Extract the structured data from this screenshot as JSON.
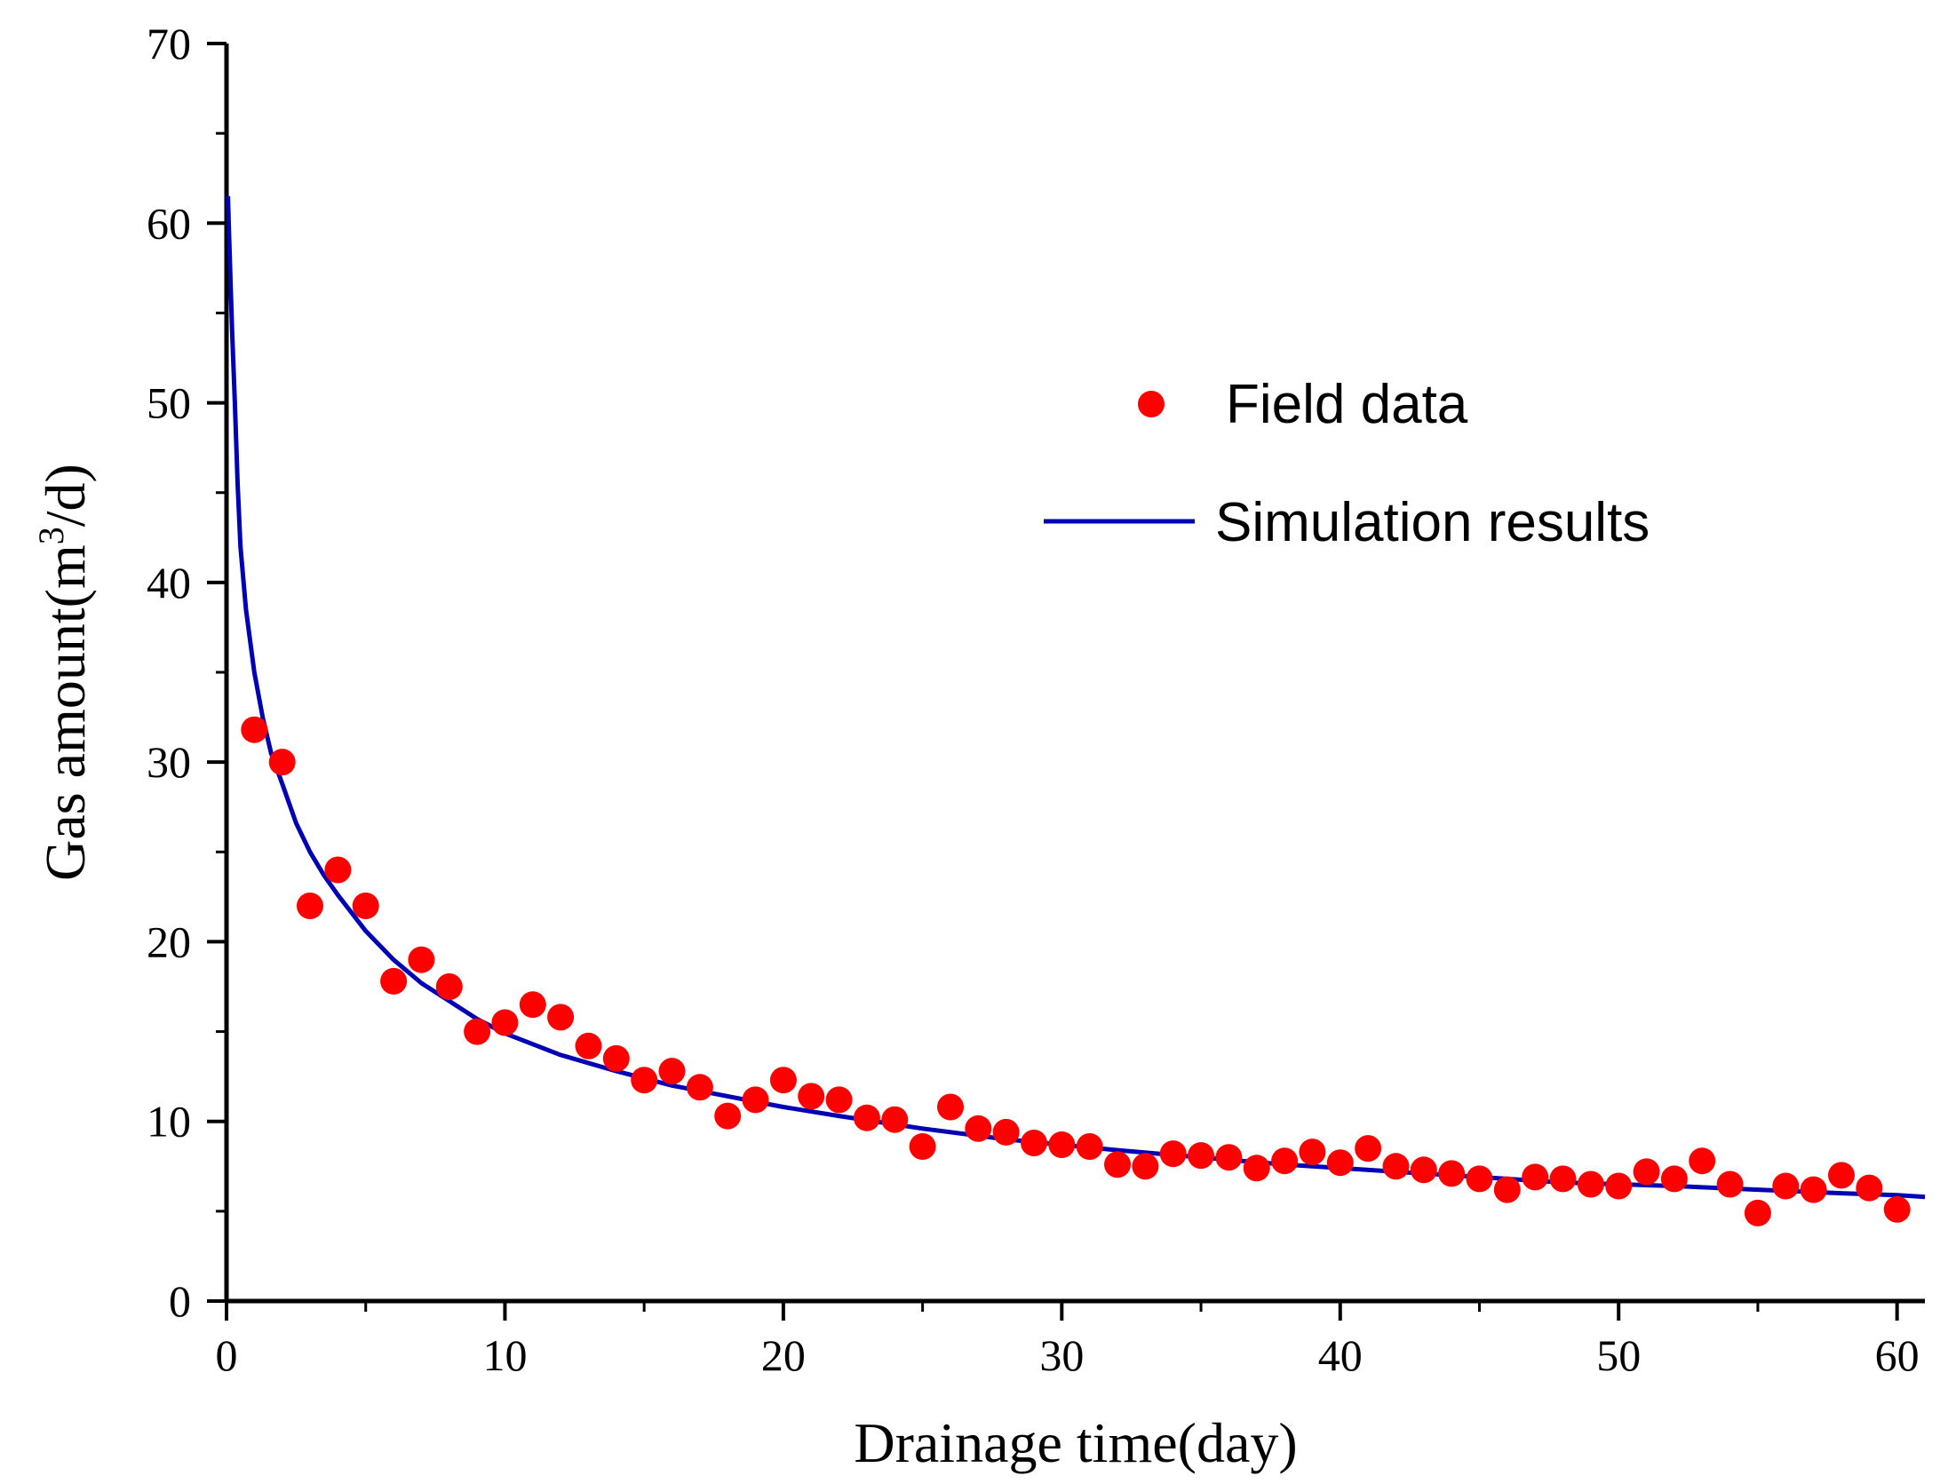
{
  "chart_data": {
    "type": "scatter",
    "xlabel": "Drainage time(day)",
    "ylabel_main": "Gas amount(m",
    "ylabel_sup": "3",
    "ylabel_end": "/d)",
    "xlim": [
      0,
      61
    ],
    "ylim": [
      0,
      70
    ],
    "x_ticks": [
      0,
      10,
      20,
      30,
      40,
      50,
      60
    ],
    "x_tick_labels": [
      "0",
      "10",
      "20",
      "30",
      "40",
      "50",
      "60"
    ],
    "y_ticks": [
      0,
      10,
      20,
      30,
      40,
      50,
      60,
      70
    ],
    "y_tick_labels": [
      "0",
      "10",
      "20",
      "30",
      "40",
      "50",
      "60",
      "70"
    ],
    "grid": false,
    "legend_position": "top-right",
    "series": [
      {
        "name": "Field data",
        "kind": "scatter",
        "color": "#ff0000",
        "x": [
          1,
          2,
          3,
          4,
          5,
          6,
          7,
          8,
          9,
          10,
          11,
          12,
          13,
          14,
          15,
          16,
          17,
          18,
          19,
          20,
          21,
          22,
          23,
          24,
          25,
          26,
          27,
          28,
          29,
          30,
          31,
          32,
          33,
          34,
          35,
          36,
          37,
          38,
          39,
          40,
          41,
          42,
          43,
          44,
          45,
          46,
          47,
          48,
          49,
          50,
          51,
          52,
          53,
          54,
          55,
          56,
          57,
          58,
          59,
          60
        ],
        "y": [
          31.8,
          30.0,
          22.0,
          24.0,
          22.0,
          17.8,
          19.0,
          17.5,
          15.0,
          15.5,
          16.5,
          15.8,
          14.2,
          13.5,
          12.3,
          12.8,
          11.9,
          10.3,
          11.2,
          12.3,
          11.4,
          11.2,
          10.2,
          10.1,
          8.6,
          10.8,
          9.6,
          9.4,
          8.8,
          8.7,
          8.6,
          7.6,
          7.5,
          8.2,
          8.1,
          8.0,
          7.4,
          7.8,
          8.3,
          7.7,
          8.5,
          7.5,
          7.3,
          7.1,
          6.8,
          6.2,
          6.9,
          6.8,
          6.5,
          6.4,
          7.2,
          6.8,
          7.8,
          6.5,
          4.9,
          6.4,
          6.2,
          7.0,
          6.3,
          5.1
        ]
      },
      {
        "name": "Simulation results",
        "kind": "line",
        "color": "#0000b4",
        "x": [
          0.05,
          0.1,
          0.2,
          0.3,
          0.4,
          0.5,
          0.7,
          1.0,
          1.3,
          1.6,
          2.0,
          2.5,
          3.0,
          3.5,
          4.0,
          5.0,
          6.0,
          7.0,
          8.0,
          9.0,
          10.0,
          12.0,
          14.0,
          16.0,
          18.0,
          20.0,
          22.0,
          25.0,
          28.0,
          30.0,
          32.0,
          35.0,
          38.0,
          40.0,
          42.0,
          45.0,
          48.0,
          50.0,
          52.0,
          55.0,
          58.0,
          60.0,
          61.0
        ],
        "y": [
          61.5,
          59.0,
          54.0,
          50.0,
          45.5,
          42.0,
          38.5,
          35.0,
          32.5,
          30.5,
          28.8,
          26.6,
          25.0,
          23.7,
          22.6,
          20.6,
          19.0,
          17.7,
          16.7,
          15.7,
          14.9,
          13.7,
          12.8,
          12.0,
          11.4,
          10.8,
          10.3,
          9.6,
          9.0,
          8.7,
          8.4,
          8.0,
          7.6,
          7.4,
          7.2,
          6.9,
          6.6,
          6.5,
          6.4,
          6.2,
          6.0,
          5.9,
          5.8
        ]
      }
    ]
  }
}
